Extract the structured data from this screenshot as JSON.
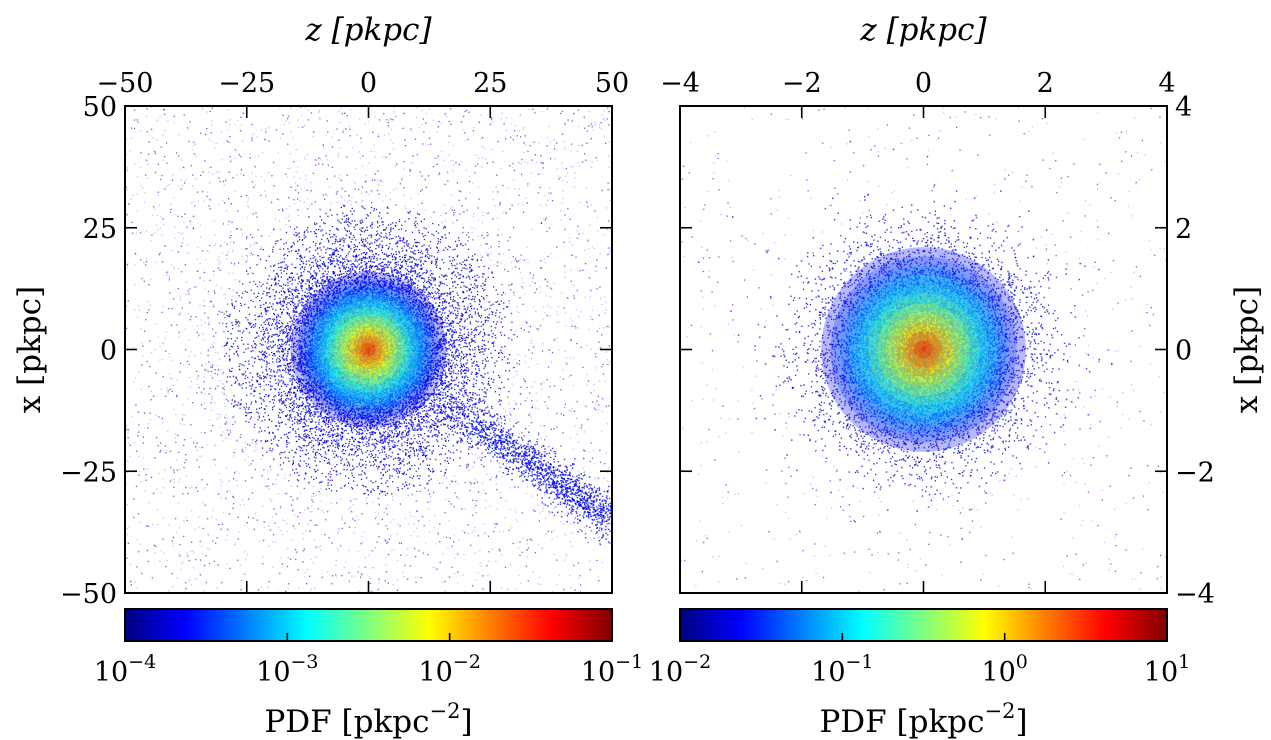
{
  "chart_data": [
    {
      "type": "heatmap",
      "title": "",
      "xlabel": "z [pkpc]",
      "ylabel": "x [pkpc]",
      "xlim": [
        -50,
        50
      ],
      "ylim": [
        50,
        -50
      ],
      "x_ticks": [
        -50,
        -25,
        0,
        25,
        50
      ],
      "y_ticks": [
        -50,
        -25,
        0,
        25,
        50
      ],
      "x_tick_labels": [
        "−50",
        "−25",
        "0",
        "25",
        "50"
      ],
      "y_tick_labels": [
        "−50",
        "−25",
        "0",
        "25",
        "50"
      ],
      "x_axis_position": "top",
      "y_axis_position": "left",
      "colorbar": {
        "label": "PDF [pkpc−2]",
        "scale": "log",
        "range": [
          0.0001,
          0.1
        ],
        "colormap": "jet",
        "tick_labels": [
          {
            "base": "10",
            "exp": "−4"
          },
          {
            "base": "10",
            "exp": "−3"
          },
          {
            "base": "10",
            "exp": "−2"
          },
          {
            "base": "10",
            "exp": "−1"
          }
        ],
        "label_parts": {
          "text": "PDF [pkpc",
          "exp": "−2",
          "close": "]"
        }
      },
      "features": {
        "center": [
          0,
          0
        ],
        "peak_pdf": 0.1,
        "stream": {
          "from": [
            12,
            -8
          ],
          "to": [
            50,
            -35
          ]
        }
      }
    },
    {
      "type": "heatmap",
      "title": "",
      "xlabel": "z [pkpc]",
      "ylabel": "x [pkpc]",
      "xlim": [
        -4,
        4
      ],
      "ylim": [
        4,
        -4
      ],
      "x_ticks": [
        -4,
        -2,
        0,
        2,
        4
      ],
      "y_ticks": [
        -4,
        -2,
        0,
        2,
        4
      ],
      "x_tick_labels": [
        "−4",
        "−2",
        "0",
        "2",
        "4"
      ],
      "y_tick_labels": [
        "−4",
        "−2",
        "0",
        "2",
        "4"
      ],
      "x_axis_position": "top",
      "y_axis_position": "right",
      "colorbar": {
        "label": "PDF [pkpc−2]",
        "scale": "log",
        "range": [
          0.01,
          10
        ],
        "colormap": "jet",
        "tick_labels": [
          {
            "base": "10",
            "exp": "−2"
          },
          {
            "base": "10",
            "exp": "−1"
          },
          {
            "base": "10",
            "exp": "0"
          },
          {
            "base": "10",
            "exp": "1"
          }
        ],
        "label_parts": {
          "text": "PDF [pkpc",
          "exp": "−2",
          "close": "]"
        }
      },
      "features": {
        "center": [
          0,
          0
        ],
        "peak_pdf": 10
      }
    }
  ],
  "colors": {
    "colormap_stops": [
      "#00007f",
      "#0000ff",
      "#007fff",
      "#00ffff",
      "#7fff7f",
      "#ffff00",
      "#ff7f00",
      "#ff0000",
      "#7f0000"
    ]
  }
}
